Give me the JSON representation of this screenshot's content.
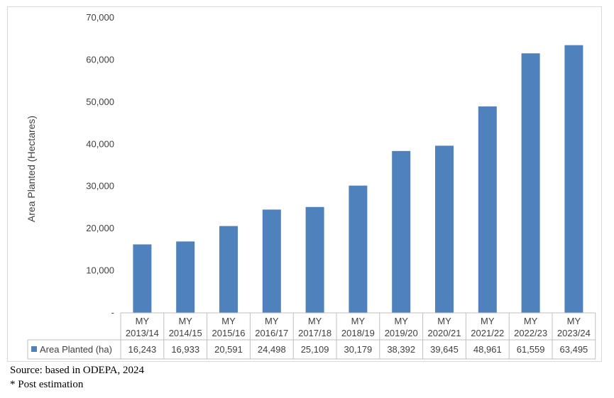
{
  "chart_data": {
    "type": "bar",
    "categories": [
      [
        "MY",
        "2013/14"
      ],
      [
        "MY",
        "2014/15"
      ],
      [
        "MY",
        "2015/16"
      ],
      [
        "MY",
        "2016/17"
      ],
      [
        "MY",
        "2017/18"
      ],
      [
        "MY",
        "2018/19"
      ],
      [
        "MY",
        "2019/20"
      ],
      [
        "MY",
        "2020/21"
      ],
      [
        "MY",
        "2021/22"
      ],
      [
        "MY",
        "2022/23"
      ],
      [
        "MY",
        "2023/24"
      ]
    ],
    "series": [
      {
        "name": "Area Planted (ha)",
        "values": [
          16243,
          16933,
          20591,
          24498,
          25109,
          30179,
          38392,
          39645,
          48961,
          61559,
          63495
        ],
        "value_labels": [
          "16,243",
          "16,933",
          "20,591",
          "24,498",
          "25,109",
          "30,179",
          "38,392",
          "39,645",
          "48,961",
          "61,559",
          "63,495"
        ],
        "color": "#4f81bd"
      }
    ],
    "ylabel": "Area Planted (Hectares)",
    "xlabel": "",
    "ylim": [
      0,
      70000
    ],
    "yticks": [
      0,
      10000,
      20000,
      30000,
      40000,
      50000,
      60000,
      70000
    ],
    "ytick_labels": [
      "-",
      "10,000",
      "20,000",
      "30,000",
      "40,000",
      "50,000",
      "60,000",
      "70,000"
    ],
    "grid": false,
    "legend": "data-table"
  },
  "notes": {
    "source": "Source: based in ODEPA, 2024",
    "post": "* Post estimation"
  }
}
